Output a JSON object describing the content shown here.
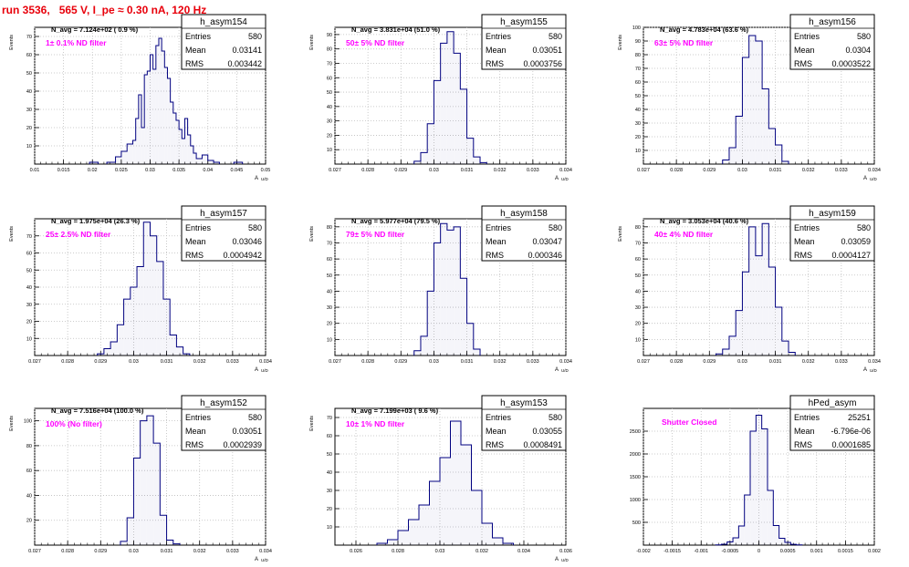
{
  "run_title": "run 3536,   565 V, I_pe ≈ 0.30 nA, 120 Hz",
  "colors": {
    "title": "#e8000b",
    "histogram": "#000080",
    "annotation": "#ff00ff",
    "grid": "#bdbdbd"
  },
  "stat_labels": {
    "entries": "Entries",
    "mean": "Mean",
    "rms": "RMS"
  },
  "chart_data": [
    {
      "type": "histogram",
      "name": "h_asym154",
      "stats": {
        "entries": "580",
        "mean": "0.03141",
        "rms": "0.003442"
      },
      "navg": "N_avg = 7.124e+02 ( 0.9 %)",
      "filter": "1± 0.1% ND filter",
      "ylabel": "Events",
      "xlabel": "A",
      "xlabel_sub": "U/D",
      "xlim": [
        0.01,
        0.05
      ],
      "ylim": [
        0,
        75
      ],
      "grid": true,
      "xticks": [
        "0.01",
        "0.015",
        "0.02",
        "0.025",
        "0.03",
        "0.035",
        "0.04",
        "0.045",
        "0.05"
      ],
      "yticks": [
        "10",
        "20",
        "30",
        "40",
        "50",
        "60",
        "70"
      ],
      "bins": [
        [
          0.0195,
          0.021,
          1
        ],
        [
          0.0225,
          0.024,
          1
        ],
        [
          0.024,
          0.025,
          4
        ],
        [
          0.025,
          0.026,
          7
        ],
        [
          0.026,
          0.027,
          11
        ],
        [
          0.027,
          0.0275,
          13
        ],
        [
          0.0275,
          0.028,
          25
        ],
        [
          0.028,
          0.0285,
          38
        ],
        [
          0.0285,
          0.029,
          20
        ],
        [
          0.029,
          0.0295,
          49
        ],
        [
          0.0295,
          0.03,
          51
        ],
        [
          0.03,
          0.0305,
          60
        ],
        [
          0.0305,
          0.031,
          52
        ],
        [
          0.031,
          0.0315,
          65
        ],
        [
          0.0315,
          0.032,
          69
        ],
        [
          0.032,
          0.0325,
          62
        ],
        [
          0.0325,
          0.033,
          53
        ],
        [
          0.033,
          0.0335,
          47
        ],
        [
          0.0335,
          0.034,
          34
        ],
        [
          0.034,
          0.0345,
          28
        ],
        [
          0.0345,
          0.035,
          24
        ],
        [
          0.035,
          0.0355,
          19
        ],
        [
          0.0355,
          0.036,
          14
        ],
        [
          0.036,
          0.0365,
          25
        ],
        [
          0.0365,
          0.037,
          16
        ],
        [
          0.037,
          0.0375,
          10
        ],
        [
          0.0375,
          0.038,
          6
        ],
        [
          0.038,
          0.039,
          3
        ],
        [
          0.039,
          0.04,
          5
        ],
        [
          0.04,
          0.041,
          2
        ],
        [
          0.041,
          0.042,
          1
        ],
        [
          0.0445,
          0.046,
          1
        ]
      ]
    },
    {
      "type": "histogram",
      "name": "h_asym155",
      "stats": {
        "entries": "580",
        "mean": "0.03051",
        "rms": "0.0003756"
      },
      "navg": "N_avg = 3.831e+04 (51.0 %)",
      "filter": "50± 5% ND filter",
      "ylabel": "Events",
      "xlabel": "A",
      "xlabel_sub": "U/D",
      "xlim": [
        0.027,
        0.034
      ],
      "ylim": [
        0,
        95
      ],
      "grid": true,
      "xticks": [
        "0.027",
        "0.028",
        "0.029",
        "0.03",
        "0.031",
        "0.032",
        "0.033",
        "0.034"
      ],
      "yticks": [
        "10",
        "20",
        "30",
        "40",
        "50",
        "60",
        "70",
        "80",
        "90"
      ],
      "bins": [
        [
          0.0294,
          0.0296,
          2
        ],
        [
          0.0296,
          0.0298,
          8
        ],
        [
          0.0298,
          0.03,
          28
        ],
        [
          0.03,
          0.0302,
          58
        ],
        [
          0.0302,
          0.0304,
          84
        ],
        [
          0.0304,
          0.0306,
          92
        ],
        [
          0.0306,
          0.0308,
          77
        ],
        [
          0.0308,
          0.031,
          52
        ],
        [
          0.031,
          0.0312,
          18
        ],
        [
          0.0312,
          0.0314,
          5
        ],
        [
          0.0314,
          0.0316,
          1
        ]
      ]
    },
    {
      "type": "histogram",
      "name": "h_asym156",
      "stats": {
        "entries": "580",
        "mean": "0.0304",
        "rms": "0.0003522"
      },
      "navg": "N_avg = 4.783e+04 (63.6 %)",
      "filter": "63± 5% ND filter",
      "ylabel": "Events",
      "xlabel": "A",
      "xlabel_sub": "U/D",
      "xlim": [
        0.027,
        0.034
      ],
      "ylim": [
        0,
        100
      ],
      "grid": true,
      "xticks": [
        "0.027",
        "0.028",
        "0.029",
        "0.03",
        "0.031",
        "0.032",
        "0.033",
        "0.034"
      ],
      "yticks": [
        "10",
        "20",
        "30",
        "40",
        "50",
        "60",
        "70",
        "80",
        "90",
        "100"
      ],
      "bins": [
        [
          0.0294,
          0.0296,
          3
        ],
        [
          0.0296,
          0.0298,
          12
        ],
        [
          0.0298,
          0.03,
          35
        ],
        [
          0.03,
          0.0302,
          78
        ],
        [
          0.0302,
          0.0304,
          94
        ],
        [
          0.0304,
          0.0306,
          90
        ],
        [
          0.0306,
          0.0308,
          55
        ],
        [
          0.0308,
          0.031,
          26
        ],
        [
          0.031,
          0.0312,
          14
        ],
        [
          0.0312,
          0.0314,
          2
        ]
      ]
    },
    {
      "type": "histogram",
      "name": "h_asym157",
      "stats": {
        "entries": "580",
        "mean": "0.03046",
        "rms": "0.0004942"
      },
      "navg": "N_avg = 1.975e+04 (26.3 %)",
      "filter": "25± 2.5% ND filter",
      "ylabel": "Events",
      "xlabel": "A",
      "xlabel_sub": "U/D",
      "xlim": [
        0.027,
        0.034
      ],
      "ylim": [
        0,
        80
      ],
      "grid": true,
      "xticks": [
        "0.027",
        "0.028",
        "0.029",
        "0.03",
        "0.031",
        "0.032",
        "0.033",
        "0.034"
      ],
      "yticks": [
        "10",
        "20",
        "30",
        "40",
        "50",
        "60",
        "70"
      ],
      "bins": [
        [
          0.0289,
          0.0291,
          1
        ],
        [
          0.0291,
          0.0293,
          4
        ],
        [
          0.0293,
          0.0295,
          8
        ],
        [
          0.0295,
          0.0297,
          18
        ],
        [
          0.0297,
          0.0299,
          33
        ],
        [
          0.0299,
          0.0301,
          40
        ],
        [
          0.0301,
          0.0303,
          52
        ],
        [
          0.0303,
          0.0305,
          78
        ],
        [
          0.0305,
          0.0307,
          70
        ],
        [
          0.0307,
          0.0309,
          55
        ],
        [
          0.0309,
          0.0311,
          33
        ],
        [
          0.0311,
          0.0313,
          12
        ],
        [
          0.0313,
          0.0315,
          5
        ],
        [
          0.0315,
          0.0317,
          1
        ]
      ]
    },
    {
      "type": "histogram",
      "name": "h_asym158",
      "stats": {
        "entries": "580",
        "mean": "0.03047",
        "rms": "0.000346"
      },
      "navg": "N_avg = 5.977e+04 (79.5 %)",
      "filter": "79± 5% ND filter",
      "ylabel": "Events",
      "xlabel": "A",
      "xlabel_sub": "U/D",
      "xlim": [
        0.027,
        0.034
      ],
      "ylim": [
        0,
        85
      ],
      "grid": true,
      "xticks": [
        "0.027",
        "0.028",
        "0.029",
        "0.03",
        "0.031",
        "0.032",
        "0.033",
        "0.034"
      ],
      "yticks": [
        "10",
        "20",
        "30",
        "40",
        "50",
        "60",
        "70",
        "80"
      ],
      "bins": [
        [
          0.0294,
          0.0296,
          3
        ],
        [
          0.0296,
          0.0298,
          12
        ],
        [
          0.0298,
          0.03,
          40
        ],
        [
          0.03,
          0.0302,
          70
        ],
        [
          0.0302,
          0.0304,
          82
        ],
        [
          0.0304,
          0.0306,
          78
        ],
        [
          0.0306,
          0.0308,
          80
        ],
        [
          0.0308,
          0.031,
          48
        ],
        [
          0.031,
          0.0312,
          20
        ],
        [
          0.0312,
          0.0314,
          4
        ]
      ]
    },
    {
      "type": "histogram",
      "name": "h_asym159",
      "stats": {
        "entries": "580",
        "mean": "0.03059",
        "rms": "0.0004127"
      },
      "navg": "N_avg = 3.053e+04 (40.6 %)",
      "filter": "40± 4% ND filter",
      "ylabel": "Events",
      "xlabel": "A",
      "xlabel_sub": "U/D",
      "xlim": [
        0.027,
        0.034
      ],
      "ylim": [
        0,
        85
      ],
      "grid": true,
      "xticks": [
        "0.027",
        "0.028",
        "0.029",
        "0.03",
        "0.031",
        "0.032",
        "0.033",
        "0.034"
      ],
      "yticks": [
        "10",
        "20",
        "30",
        "40",
        "50",
        "60",
        "70",
        "80"
      ],
      "bins": [
        [
          0.0292,
          0.0294,
          1
        ],
        [
          0.0294,
          0.0296,
          4
        ],
        [
          0.0296,
          0.0298,
          12
        ],
        [
          0.0298,
          0.03,
          28
        ],
        [
          0.03,
          0.0302,
          52
        ],
        [
          0.0302,
          0.0304,
          80
        ],
        [
          0.0304,
          0.0306,
          62
        ],
        [
          0.0306,
          0.0308,
          82
        ],
        [
          0.0308,
          0.031,
          55
        ],
        [
          0.031,
          0.0312,
          30
        ],
        [
          0.0312,
          0.0314,
          9
        ],
        [
          0.0314,
          0.0316,
          2
        ]
      ]
    },
    {
      "type": "histogram",
      "name": "h_asym152",
      "stats": {
        "entries": "580",
        "mean": "0.03051",
        "rms": "0.0002939"
      },
      "navg": "N_avg = 7.516e+04 (100.0 %)",
      "filter": "100% (No filter)",
      "ylabel": "Events",
      "xlabel": "A",
      "xlabel_sub": "U/D",
      "xlim": [
        0.027,
        0.034
      ],
      "ylim": [
        0,
        110
      ],
      "grid": true,
      "xticks": [
        "0.027",
        "0.028",
        "0.029",
        "0.03",
        "0.031",
        "0.032",
        "0.033",
        "0.034"
      ],
      "yticks": [
        "20",
        "40",
        "60",
        "80",
        "100"
      ],
      "bins": [
        [
          0.0296,
          0.0298,
          3
        ],
        [
          0.0298,
          0.03,
          22
        ],
        [
          0.03,
          0.0302,
          70
        ],
        [
          0.0302,
          0.0304,
          100
        ],
        [
          0.0304,
          0.0306,
          104
        ],
        [
          0.0306,
          0.0308,
          82
        ],
        [
          0.0308,
          0.031,
          24
        ],
        [
          0.031,
          0.0312,
          4
        ],
        [
          0.0312,
          0.0314,
          1
        ]
      ]
    },
    {
      "type": "histogram",
      "name": "h_asym153",
      "stats": {
        "entries": "580",
        "mean": "0.03055",
        "rms": "0.0008491"
      },
      "navg": "N_avg = 7.199e+03 ( 9.6 %)",
      "filter": "10± 1% ND filter",
      "ylabel": "Events",
      "xlabel": "A",
      "xlabel_sub": "U/D",
      "xlim": [
        0.025,
        0.036
      ],
      "ylim": [
        0,
        75
      ],
      "grid": true,
      "xticks": [
        "0.026",
        "0.028",
        "0.03",
        "0.032",
        "0.034",
        "0.036"
      ],
      "yticks": [
        "10",
        "20",
        "30",
        "40",
        "50",
        "60",
        "70"
      ],
      "bins": [
        [
          0.027,
          0.0275,
          1
        ],
        [
          0.0275,
          0.028,
          3
        ],
        [
          0.028,
          0.0285,
          8
        ],
        [
          0.0285,
          0.029,
          14
        ],
        [
          0.029,
          0.0295,
          22
        ],
        [
          0.0295,
          0.03,
          35
        ],
        [
          0.03,
          0.0305,
          48
        ],
        [
          0.0305,
          0.031,
          68
        ],
        [
          0.031,
          0.0315,
          55
        ],
        [
          0.0315,
          0.032,
          30
        ],
        [
          0.032,
          0.0325,
          12
        ],
        [
          0.0325,
          0.033,
          4
        ],
        [
          0.033,
          0.0335,
          1
        ]
      ]
    },
    {
      "type": "histogram",
      "name": "hPed_asym",
      "stats": {
        "entries": "25251",
        "mean": "-6.796e-06",
        "rms": "0.0001685"
      },
      "navg": "",
      "filter": "Shutter Closed",
      "ylabel": "",
      "xlabel": "",
      "xlabel_sub": "",
      "xlim": [
        -0.002,
        0.002
      ],
      "ylim": [
        0,
        3000
      ],
      "grid": true,
      "xticks": [
        "-0.002",
        "-0.0015",
        "-0.001",
        "-0.0005",
        "0",
        "0.0005",
        "0.001",
        "0.0015",
        "0.002"
      ],
      "yticks": [
        "500",
        "1000",
        "1500",
        "2000",
        "2500"
      ],
      "bins": [
        [
          -0.00075,
          -0.00065,
          5
        ],
        [
          -0.00065,
          -0.00055,
          20
        ],
        [
          -0.00055,
          -0.00045,
          70
        ],
        [
          -0.00045,
          -0.00035,
          160
        ],
        [
          -0.00035,
          -0.00025,
          420
        ],
        [
          -0.00025,
          -0.00015,
          1100
        ],
        [
          -0.00015,
          -5e-05,
          2500
        ],
        [
          -5e-05,
          5e-05,
          2850
        ],
        [
          5e-05,
          0.00015,
          2550
        ],
        [
          0.00015,
          0.00025,
          1200
        ],
        [
          0.00025,
          0.00035,
          430
        ],
        [
          0.00035,
          0.00045,
          150
        ],
        [
          0.00045,
          0.00055,
          60
        ],
        [
          0.00055,
          0.00065,
          18
        ],
        [
          0.00065,
          0.00075,
          5
        ]
      ]
    }
  ]
}
